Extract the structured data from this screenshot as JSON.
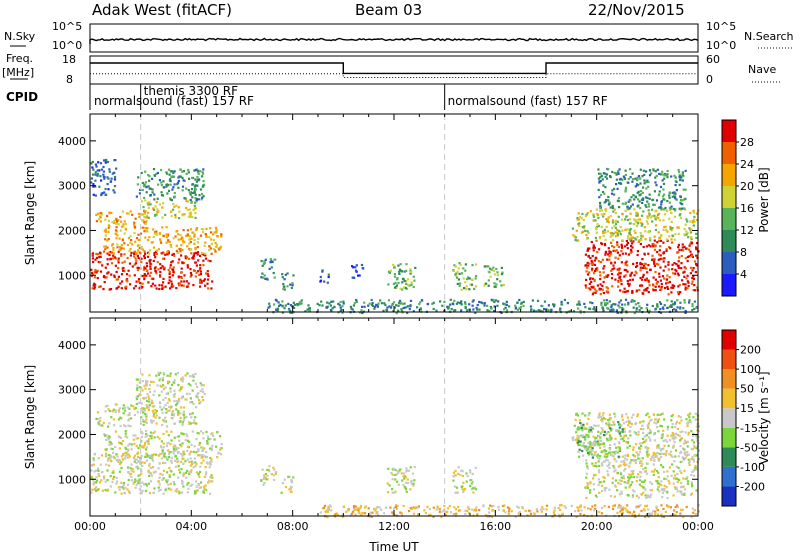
{
  "header": {
    "title": "Adak West (fitACF)",
    "beam": "Beam 03",
    "date": "22/Nov/2015"
  },
  "noise_panel": {
    "left_label": "N.Sky",
    "right_label": "N.Search",
    "ticks_left": [
      "10^5",
      "10^0"
    ],
    "ticks_right": [
      "10^5",
      "10^0"
    ]
  },
  "freq_panel": {
    "left_label_1": "Freq.",
    "left_label_2": "[MHz]",
    "ticks_left": [
      "18",
      "8"
    ],
    "right_label": "Nave",
    "ticks_right": [
      "60",
      "0"
    ],
    "freq_segments": [
      {
        "start": 0.0,
        "end": 10.0,
        "value": 15.5
      },
      {
        "start": 10.0,
        "end": 18.0,
        "value": 11.8
      },
      {
        "start": 18.0,
        "end": 24.0,
        "value": 15.5
      }
    ],
    "nave_segments": [
      {
        "start": 0.0,
        "end": 10.0,
        "value": 22
      },
      {
        "start": 10.0,
        "end": 14.0,
        "value": 14
      },
      {
        "start": 14.0,
        "end": 18.0,
        "value": 14
      },
      {
        "start": 18.0,
        "end": 24.0,
        "value": 22
      }
    ]
  },
  "cpid": {
    "label": "CPID",
    "modes": [
      {
        "name": "normalsound (fast) 157 RF",
        "start_hour": 0.0
      },
      {
        "name": "themis 3300 RF",
        "start_hour": 2.0
      },
      {
        "name": "normalsound (fast) 157 RF",
        "start_hour": 14.0
      }
    ],
    "switch_hours": [
      2.0,
      14.0
    ]
  },
  "chart_data": [
    {
      "type": "heatmap",
      "name": "power",
      "ylabel": "Slant Range [km]",
      "xlabel": "",
      "x_range_hours": [
        0,
        24
      ],
      "ylim": [
        180,
        4600
      ],
      "yticks": [
        1000,
        2000,
        3000,
        4000
      ],
      "colorbar": {
        "label": "Power [dB]",
        "ticks": [
          "4",
          "8",
          "12",
          "16",
          "20",
          "24",
          "28"
        ],
        "colors": [
          "#1a1aff",
          "#2b5dbf",
          "#2e8b57",
          "#58b35a",
          "#cfd233",
          "#f5a500",
          "#f06000",
          "#e00000"
        ]
      },
      "echo_regions": [
        {
          "x0": 0.0,
          "x1": 4.8,
          "y0": 700,
          "y1": 1550,
          "level": 7
        },
        {
          "x0": 0.5,
          "x1": 5.2,
          "y0": 1500,
          "y1": 2100,
          "level": 5
        },
        {
          "x0": 0.2,
          "x1": 2.2,
          "y0": 2100,
          "y1": 2450,
          "level": 5
        },
        {
          "x0": 2.0,
          "x1": 4.2,
          "y0": 2300,
          "y1": 2700,
          "level": 4
        },
        {
          "x0": 1.8,
          "x1": 4.5,
          "y0": 2700,
          "y1": 3400,
          "level": 2
        },
        {
          "x0": 0.0,
          "x1": 1.0,
          "y0": 2800,
          "y1": 3600,
          "level": 1
        },
        {
          "x0": 6.7,
          "x1": 7.3,
          "y0": 900,
          "y1": 1400,
          "level": 2
        },
        {
          "x0": 7.5,
          "x1": 8.0,
          "y0": 700,
          "y1": 1100,
          "level": 2
        },
        {
          "x0": 9.0,
          "x1": 9.4,
          "y0": 850,
          "y1": 1150,
          "level": 1
        },
        {
          "x0": 10.3,
          "x1": 10.8,
          "y0": 950,
          "y1": 1300,
          "level": 1
        },
        {
          "x0": 11.7,
          "x1": 12.8,
          "y0": 700,
          "y1": 1300,
          "level": 3
        },
        {
          "x0": 14.3,
          "x1": 15.2,
          "y0": 700,
          "y1": 1300,
          "level": 3
        },
        {
          "x0": 15.5,
          "x1": 16.3,
          "y0": 750,
          "y1": 1250,
          "level": 3
        },
        {
          "x0": 19.5,
          "x1": 24.0,
          "y0": 600,
          "y1": 1800,
          "level": 7
        },
        {
          "x0": 19.0,
          "x1": 24.0,
          "y0": 1800,
          "y1": 2500,
          "level": 4
        },
        {
          "x0": 20.0,
          "x1": 23.5,
          "y0": 2500,
          "y1": 3400,
          "level": 2
        },
        {
          "x0": 7.0,
          "x1": 24.0,
          "y0": 180,
          "y1": 480,
          "level": 2
        }
      ]
    },
    {
      "type": "heatmap",
      "name": "velocity",
      "ylabel": "Slant Range [km]",
      "xlabel": "Time UT",
      "x_range_hours": [
        0,
        24
      ],
      "xticks": [
        "00:00",
        "04:00",
        "08:00",
        "12:00",
        "16:00",
        "20:00",
        "00:00"
      ],
      "ylim": [
        180,
        4600
      ],
      "yticks": [
        1000,
        2000,
        3000,
        4000
      ],
      "colorbar": {
        "label": "Velocity [m s⁻¹]",
        "ticks": [
          "200",
          "100",
          "50",
          "15",
          "-15",
          "-50",
          "-100",
          "-200"
        ],
        "colors": [
          "#1a30c0",
          "#2f6fd0",
          "#2e8b57",
          "#7ad63a",
          "#c8c8c8",
          "#f0c030",
          "#f09020",
          "#f05010",
          "#e00000"
        ]
      },
      "echo_regions": [
        {
          "x0": 0.0,
          "x1": 4.8,
          "y0": 700,
          "y1": 1600,
          "level": 4
        },
        {
          "x0": 0.5,
          "x1": 5.2,
          "y0": 1500,
          "y1": 2100,
          "level": 4
        },
        {
          "x0": 0.2,
          "x1": 4.2,
          "y0": 2200,
          "y1": 2700,
          "level": 4
        },
        {
          "x0": 1.8,
          "x1": 4.5,
          "y0": 2700,
          "y1": 3400,
          "level": 4
        },
        {
          "x0": 6.7,
          "x1": 7.3,
          "y0": 900,
          "y1": 1400,
          "level": 4
        },
        {
          "x0": 7.5,
          "x1": 8.0,
          "y0": 700,
          "y1": 1100,
          "level": 4
        },
        {
          "x0": 11.7,
          "x1": 12.8,
          "y0": 700,
          "y1": 1300,
          "level": 4
        },
        {
          "x0": 14.3,
          "x1": 15.2,
          "y0": 700,
          "y1": 1300,
          "level": 4
        },
        {
          "x0": 19.5,
          "x1": 24.0,
          "y0": 600,
          "y1": 1800,
          "level": 4
        },
        {
          "x0": 19.0,
          "x1": 24.0,
          "y0": 1800,
          "y1": 2500,
          "level": 4
        },
        {
          "x0": 19.2,
          "x1": 21.0,
          "y0": 1500,
          "y1": 2300,
          "level": 3
        },
        {
          "x0": 9.0,
          "x1": 24.0,
          "y0": 180,
          "y1": 450,
          "level": 5
        }
      ]
    }
  ]
}
